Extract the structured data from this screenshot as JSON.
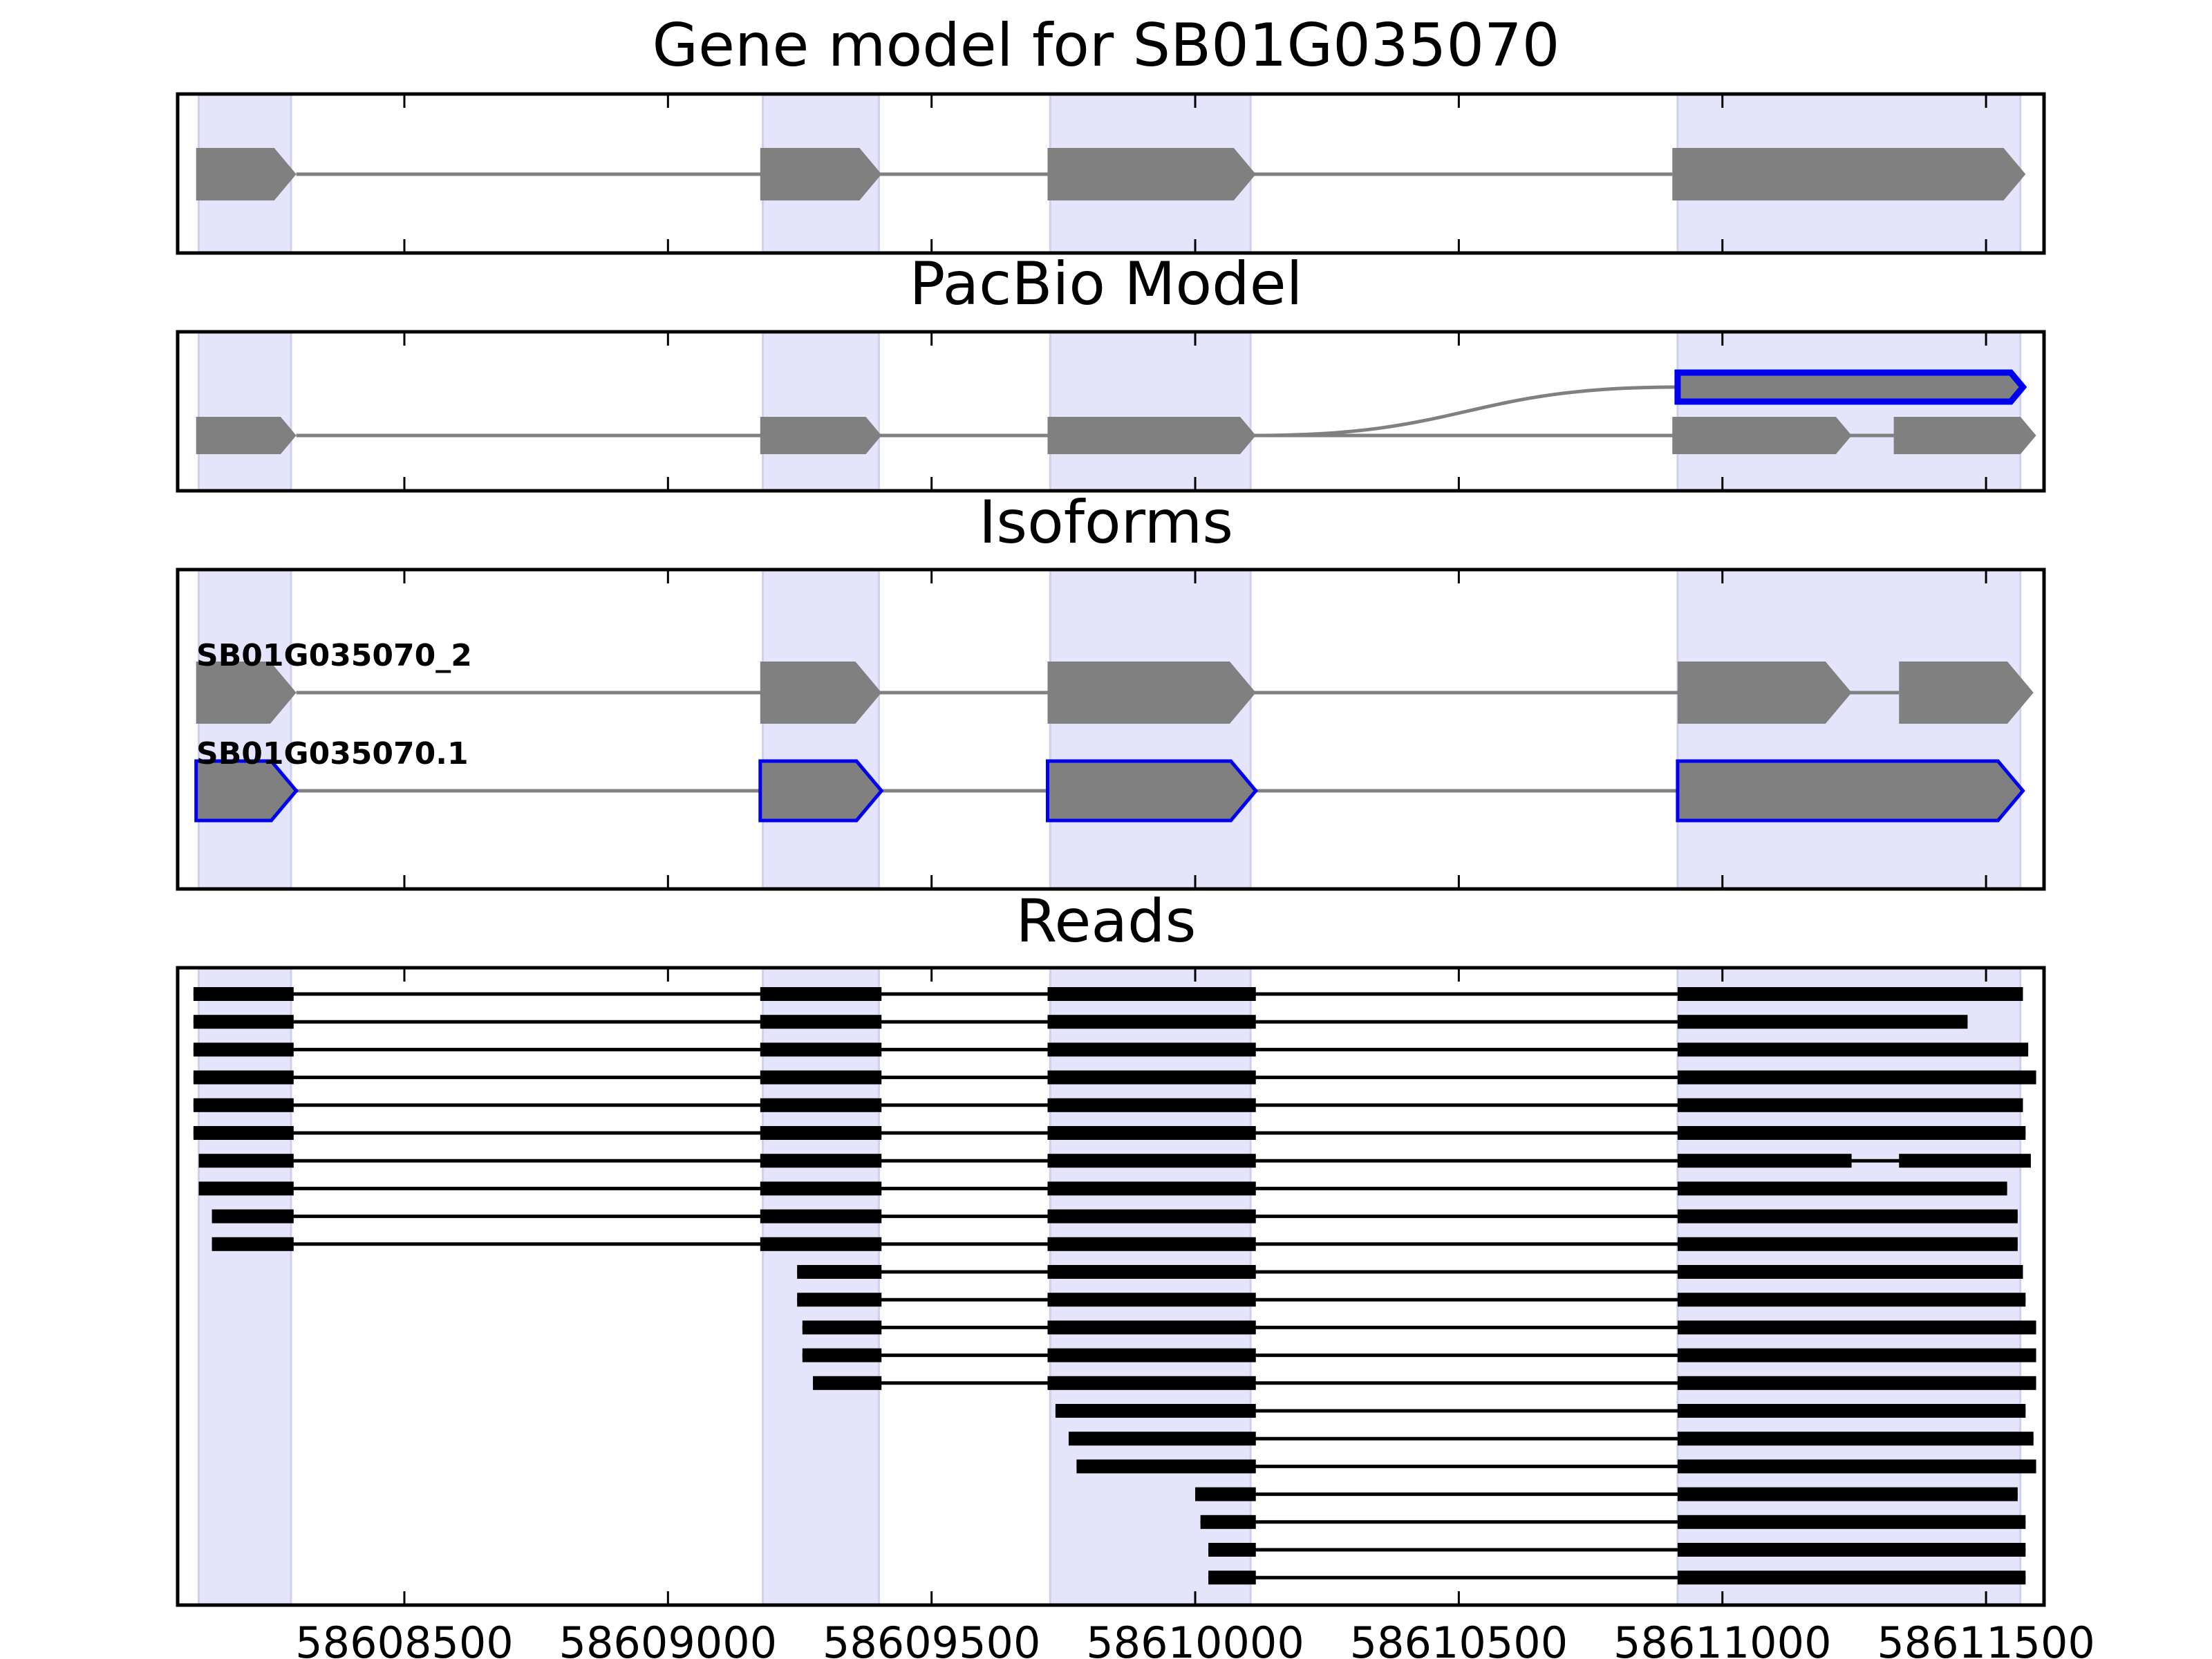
{
  "chart_data": {
    "type": "gene-model-tracks",
    "x_range": [
      58608070,
      58611610
    ],
    "x_ticks": [
      58608500,
      58609000,
      58609500,
      58610000,
      58610500,
      58611000,
      58611500
    ],
    "x_tick_labels": [
      "58608500",
      "58609000",
      "58609500",
      "58610000",
      "58610500",
      "58611000",
      "58611500"
    ],
    "exon_highlight_regions": [
      [
        58608110,
        58608285
      ],
      [
        58609180,
        58609400
      ],
      [
        58609725,
        58610105
      ],
      [
        58610915,
        58611565
      ]
    ],
    "colors": {
      "exon": "#808080",
      "intron": "#808080",
      "highlight": "#e4e4fb",
      "highlight_edge": "#cfcff0",
      "selected_outline": "#0000ee",
      "read": "#000000",
      "frame": "#000000"
    },
    "panels": [
      {
        "key": "gene",
        "title": "Gene model for SB01G035070",
        "models": [
          {
            "label": "",
            "highlight": false,
            "exons": [
              [
                58608105,
                58608295
              ],
              [
                58609175,
                58609405
              ],
              [
                58609720,
                58610115
              ],
              [
                58610905,
                58611575
              ]
            ]
          }
        ]
      },
      {
        "key": "pacbio",
        "title": "PacBio Model",
        "models": [
          {
            "label": "",
            "highlight": false,
            "exons": [
              [
                58608105,
                58608295
              ],
              [
                58609175,
                58609405
              ],
              [
                58609720,
                58610115
              ],
              [
                58610905,
                58611245
              ],
              [
                58611325,
                58611595
              ]
            ]
          },
          {
            "label": "",
            "highlight": true,
            "branch_from": 58610115,
            "exons": [
              [
                58610915,
                58611570
              ]
            ]
          }
        ]
      },
      {
        "key": "isoforms",
        "title": "Isoforms",
        "models": [
          {
            "label": "SB01G035070_2",
            "highlight": false,
            "exons": [
              [
                58608105,
                58608295
              ],
              [
                58609175,
                58609405
              ],
              [
                58609720,
                58610115
              ],
              [
                58610915,
                58611245
              ],
              [
                58611335,
                58611590
              ]
            ]
          },
          {
            "label": "SB01G035070.1",
            "highlight": true,
            "exons": [
              [
                58608105,
                58608295
              ],
              [
                58609175,
                58609405
              ],
              [
                58609720,
                58610115
              ],
              [
                58610915,
                58611570
              ]
            ]
          }
        ]
      },
      {
        "key": "reads",
        "title": "Reads",
        "reads": [
          [
            [
              58608100,
              58608290
            ],
            [
              58609175,
              58609405
            ],
            [
              58609720,
              58610115
            ],
            [
              58610915,
              58611570
            ]
          ],
          [
            [
              58608100,
              58608290
            ],
            [
              58609175,
              58609405
            ],
            [
              58609720,
              58610115
            ],
            [
              58610915,
              58611465
            ]
          ],
          [
            [
              58608100,
              58608290
            ],
            [
              58609175,
              58609405
            ],
            [
              58609720,
              58610115
            ],
            [
              58610915,
              58611580
            ]
          ],
          [
            [
              58608100,
              58608290
            ],
            [
              58609175,
              58609405
            ],
            [
              58609720,
              58610115
            ],
            [
              58610915,
              58611595
            ]
          ],
          [
            [
              58608100,
              58608290
            ],
            [
              58609175,
              58609405
            ],
            [
              58609720,
              58610115
            ],
            [
              58610915,
              58611570
            ]
          ],
          [
            [
              58608100,
              58608290
            ],
            [
              58609175,
              58609405
            ],
            [
              58609720,
              58610115
            ],
            [
              58610915,
              58611575
            ]
          ],
          [
            [
              58608110,
              58608290
            ],
            [
              58609175,
              58609405
            ],
            [
              58609720,
              58610115
            ],
            [
              58610915,
              58611245
            ],
            [
              58611335,
              58611585
            ]
          ],
          [
            [
              58608110,
              58608290
            ],
            [
              58609175,
              58609405
            ],
            [
              58609720,
              58610115
            ],
            [
              58610915,
              58611540
            ]
          ],
          [
            [
              58608135,
              58608290
            ],
            [
              58609175,
              58609405
            ],
            [
              58609720,
              58610115
            ],
            [
              58610915,
              58611560
            ]
          ],
          [
            [
              58608135,
              58608290
            ],
            [
              58609175,
              58609405
            ],
            [
              58609720,
              58610115
            ],
            [
              58610915,
              58611560
            ]
          ],
          [
            [
              58609245,
              58609405
            ],
            [
              58609720,
              58610115
            ],
            [
              58610915,
              58611570
            ]
          ],
          [
            [
              58609245,
              58609405
            ],
            [
              58609720,
              58610115
            ],
            [
              58610915,
              58611575
            ]
          ],
          [
            [
              58609255,
              58609405
            ],
            [
              58609720,
              58610115
            ],
            [
              58610915,
              58611595
            ]
          ],
          [
            [
              58609255,
              58609405
            ],
            [
              58609720,
              58610115
            ],
            [
              58610915,
              58611595
            ]
          ],
          [
            [
              58609275,
              58609405
            ],
            [
              58609720,
              58610115
            ],
            [
              58610915,
              58611595
            ]
          ],
          [
            [
              58609735,
              58610115
            ],
            [
              58610915,
              58611575
            ]
          ],
          [
            [
              58609760,
              58610115
            ],
            [
              58610915,
              58611590
            ]
          ],
          [
            [
              58609775,
              58610115
            ],
            [
              58610915,
              58611595
            ]
          ],
          [
            [
              58610000,
              58610115
            ],
            [
              58610915,
              58611560
            ]
          ],
          [
            [
              58610010,
              58610115
            ],
            [
              58610915,
              58611575
            ]
          ],
          [
            [
              58610025,
              58610115
            ],
            [
              58610915,
              58611575
            ]
          ],
          [
            [
              58610025,
              58610115
            ],
            [
              58610915,
              58611575
            ]
          ]
        ]
      }
    ]
  }
}
